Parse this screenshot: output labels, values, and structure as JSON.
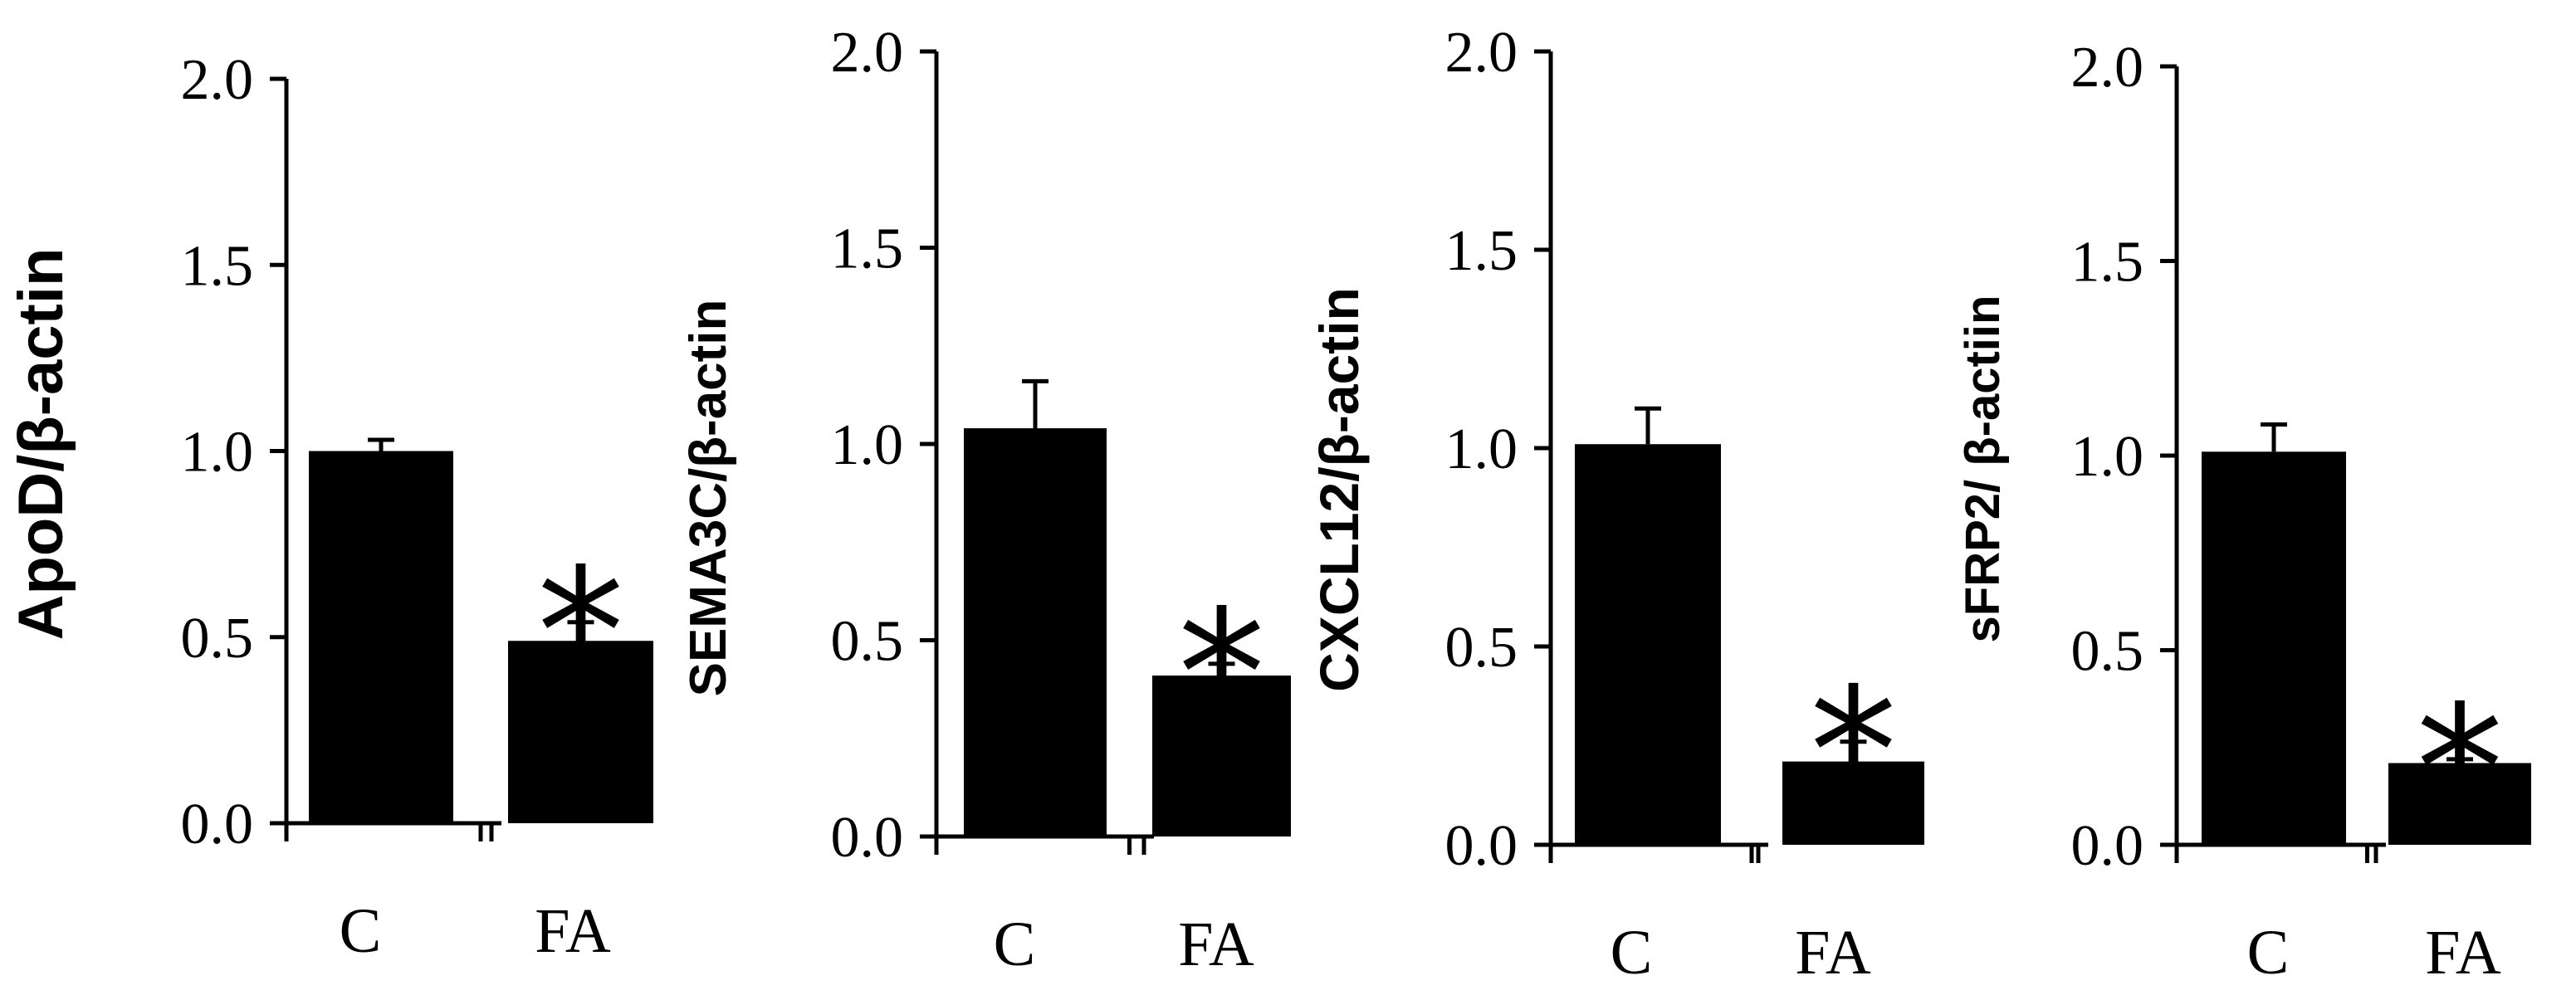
{
  "chart_data": [
    {
      "type": "bar",
      "categories": [
        "C",
        "FA"
      ],
      "values": [
        1.0,
        0.49
      ],
      "errors": [
        0.03,
        0.05
      ],
      "significance": [
        "",
        "*"
      ],
      "ylabel": "ApoD/β-actin",
      "yticks": [
        "0.0",
        "0.5",
        "1.0",
        "1.5",
        "2.0"
      ],
      "ylim": [
        0,
        2.0
      ],
      "bar_color": "#000000"
    },
    {
      "type": "bar",
      "categories": [
        "C",
        "FA"
      ],
      "values": [
        1.04,
        0.41
      ],
      "errors": [
        0.12,
        0.03
      ],
      "significance": [
        "",
        "*"
      ],
      "ylabel": "SEMA3C/β-actin",
      "yticks": [
        "0.0",
        "0.5",
        "1.0",
        "1.5",
        "2.0"
      ],
      "ylim": [
        0,
        2.0
      ],
      "bar_color": "#000000"
    },
    {
      "type": "bar",
      "categories": [
        "C",
        "FA"
      ],
      "values": [
        1.01,
        0.21
      ],
      "errors": [
        0.09,
        0.05
      ],
      "significance": [
        "",
        "*"
      ],
      "ylabel": "CXCL12/β-actin",
      "yticks": [
        "0.0",
        "0.5",
        "1.0",
        "1.5",
        "2.0"
      ],
      "ylim": [
        0,
        2.0
      ],
      "bar_color": "#000000"
    },
    {
      "type": "bar",
      "categories": [
        "C",
        "FA"
      ],
      "values": [
        1.01,
        0.21
      ],
      "errors": [
        0.07,
        0.01
      ],
      "significance": [
        "",
        "*"
      ],
      "ylabel": "sFRP2/ β-actiin",
      "yticks": [
        "0.0",
        "0.5",
        "1.0",
        "1.5",
        "2.0"
      ],
      "ylim": [
        0,
        2.0
      ],
      "bar_color": "#000000"
    }
  ]
}
